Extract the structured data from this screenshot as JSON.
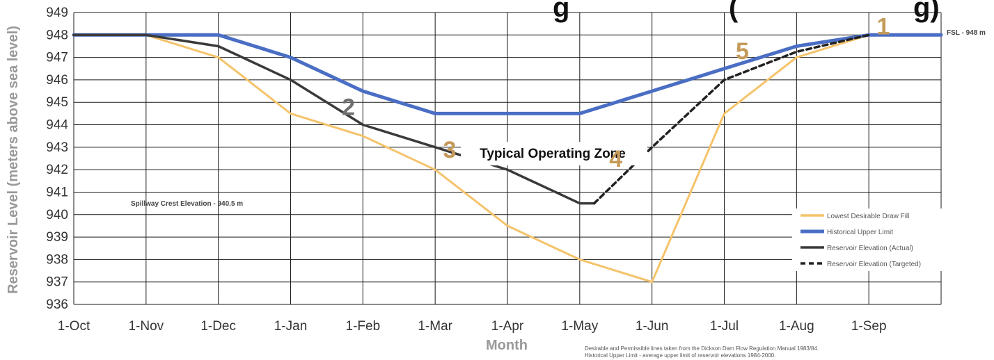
{
  "chart_data": {
    "type": "line",
    "title_fragment_left": "g",
    "title_fragment_right": "(",
    "title_fragment_end": "g)",
    "xlabel": "Month",
    "ylabel": "Reservoir Level (meters above sea level)",
    "ylim": [
      936,
      949
    ],
    "yticks": [
      936,
      937,
      938,
      939,
      940,
      941,
      942,
      943,
      944,
      945,
      946,
      947,
      948,
      949
    ],
    "categories": [
      "1-Oct",
      "1-Nov",
      "1-Dec",
      "1-Jan",
      "1-Feb",
      "1-Mar",
      "1-Apr",
      "1-May",
      "1-Jun",
      "1-Jul",
      "1-Aug",
      "1-Sep"
    ],
    "grid": true,
    "legend_position": "right",
    "series": [
      {
        "name": "Lowest Desirable Draw Fill",
        "color": "#f5c36b",
        "style": "solid",
        "points": [
          [
            0,
            948
          ],
          [
            1,
            948
          ],
          [
            2,
            947
          ],
          [
            3,
            944.5
          ],
          [
            4,
            943.5
          ],
          [
            5,
            942
          ],
          [
            6,
            939.5
          ],
          [
            7,
            938
          ],
          [
            8,
            937
          ],
          [
            9,
            944.5
          ],
          [
            10,
            947
          ],
          [
            11,
            948
          ],
          [
            12,
            948
          ]
        ]
      },
      {
        "name": "Historical Upper Limit",
        "color": "#4a6ec4",
        "style": "solid",
        "points": [
          [
            0,
            948
          ],
          [
            1,
            948
          ],
          [
            2,
            948
          ],
          [
            3,
            947
          ],
          [
            4,
            945.5
          ],
          [
            5,
            944.5
          ],
          [
            6,
            944.5
          ],
          [
            7,
            944.5
          ],
          [
            8,
            945.5
          ],
          [
            9,
            946.5
          ],
          [
            10,
            947.5
          ],
          [
            11,
            948
          ],
          [
            12,
            948
          ]
        ]
      },
      {
        "name": "Reservoir Elevation (Actual)",
        "color": "#3a3a3a",
        "style": "solid",
        "points": [
          [
            0,
            948
          ],
          [
            1,
            948
          ],
          [
            2,
            947.5
          ],
          [
            3,
            946
          ],
          [
            4,
            944
          ],
          [
            5,
            943
          ],
          [
            6,
            942
          ],
          [
            7,
            940.5
          ],
          [
            7.2,
            940.5
          ]
        ]
      },
      {
        "name": "Reservoir Elevation (Targeted)",
        "color": "#222222",
        "style": "dashed",
        "points": [
          [
            7.2,
            940.5
          ],
          [
            8,
            943
          ],
          [
            9,
            946
          ],
          [
            10,
            947.25
          ],
          [
            11,
            948
          ]
        ]
      }
    ],
    "annotations": {
      "fsl": "FSL - 948 m",
      "spillway": "Spillway Crest Elevation - 940.5 m",
      "zone": "Typical Operating Zone",
      "markers": [
        {
          "label": "1",
          "x": 11.2,
          "y": 948.4,
          "color": "#c59a5a"
        },
        {
          "label": "2",
          "x": 3.8,
          "y": 944.8,
          "color": "#707070"
        },
        {
          "label": "3",
          "x": 5.2,
          "y": 942.9,
          "color": "#c59a5a"
        },
        {
          "label": "4",
          "x": 7.5,
          "y": 942.5,
          "color": "#c59a5a"
        },
        {
          "label": "5",
          "x": 9.25,
          "y": 947.3,
          "color": "#c59a5a"
        }
      ],
      "source_note_line1": "Desirable and Permissible lines taken from the Dickson Dam Flow Regulation Manual 1983/84.",
      "source_note_line2": "Historical Upper Limit - average upper limit of reservoir elevations 1984-2000."
    }
  }
}
